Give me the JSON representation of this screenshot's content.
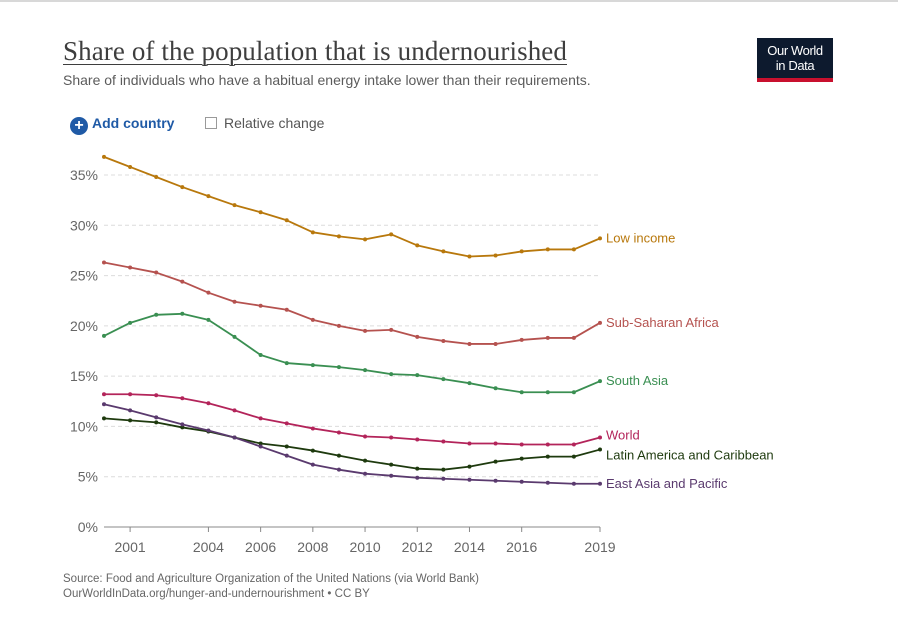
{
  "header": {
    "title": "Share of the population that is undernourished",
    "subtitle": "Share of individuals who have a habitual energy intake lower than their requirements."
  },
  "logo": {
    "line1": "Our World",
    "line2": "in Data"
  },
  "controls": {
    "add_country_label": "Add country",
    "add_country_icon": "plus-circle-icon",
    "relative_change_label": "Relative change",
    "relative_change_checked": false
  },
  "footer": {
    "source": "Source: Food and Agriculture Organization of the United Nations (via World Bank)",
    "url": "OurWorldInData.org/hunger-and-undernourishment • CC BY"
  },
  "colors": {
    "accent": "#1f5aa6",
    "brand_red": "#c8102e",
    "logo_bg": "#0d1a2e"
  },
  "chart_data": {
    "type": "line",
    "title": "Share of the population that is undernourished",
    "xlabel": "",
    "ylabel": "",
    "x": [
      2000,
      2001,
      2002,
      2003,
      2004,
      2005,
      2006,
      2007,
      2008,
      2009,
      2010,
      2011,
      2012,
      2013,
      2014,
      2015,
      2016,
      2017,
      2018,
      2019
    ],
    "xticks": [
      2001,
      2004,
      2006,
      2008,
      2010,
      2012,
      2014,
      2016,
      2019
    ],
    "xlim": [
      2000,
      2019
    ],
    "ylim": [
      0,
      35
    ],
    "yticks": [
      0,
      5,
      10,
      15,
      20,
      25,
      30,
      35
    ],
    "y_format": "%",
    "grid": "horizontal dashed",
    "series": [
      {
        "name": "Low income",
        "color": "#b8780c",
        "values": [
          36.8,
          35.8,
          34.8,
          33.8,
          32.9,
          32.0,
          31.3,
          30.5,
          29.3,
          28.9,
          28.6,
          29.1,
          28.0,
          27.4,
          26.9,
          27.0,
          27.4,
          27.6,
          27.6,
          28.7
        ]
      },
      {
        "name": "Sub-Saharan Africa",
        "color": "#b5524f",
        "values": [
          26.3,
          25.8,
          25.3,
          24.4,
          23.3,
          22.4,
          22.0,
          21.6,
          20.6,
          20.0,
          19.5,
          19.6,
          18.9,
          18.5,
          18.2,
          18.2,
          18.6,
          18.8,
          18.8,
          20.3
        ]
      },
      {
        "name": "South Asia",
        "color": "#3a8f52",
        "values": [
          19.0,
          20.3,
          21.1,
          21.2,
          20.6,
          18.9,
          17.1,
          16.3,
          16.1,
          15.9,
          15.6,
          15.2,
          15.1,
          14.7,
          14.3,
          13.8,
          13.4,
          13.4,
          13.4,
          14.5
        ]
      },
      {
        "name": "World",
        "color": "#b3245a",
        "values": [
          13.2,
          13.2,
          13.1,
          12.8,
          12.3,
          11.6,
          10.8,
          10.3,
          9.8,
          9.4,
          9.0,
          8.9,
          8.7,
          8.5,
          8.3,
          8.3,
          8.2,
          8.2,
          8.2,
          8.9
        ]
      },
      {
        "name": "Latin America and Caribbean",
        "color": "#1e3a0e",
        "values": [
          10.8,
          10.6,
          10.4,
          9.9,
          9.5,
          8.9,
          8.3,
          8.0,
          7.6,
          7.1,
          6.6,
          6.2,
          5.8,
          5.7,
          6.0,
          6.5,
          6.8,
          7.0,
          7.0,
          7.7
        ]
      },
      {
        "name": "East Asia and Pacific",
        "color": "#5a3a6e",
        "values": [
          12.2,
          11.6,
          10.9,
          10.2,
          9.6,
          8.9,
          8.0,
          7.1,
          6.2,
          5.7,
          5.3,
          5.1,
          4.9,
          4.8,
          4.7,
          4.6,
          4.5,
          4.4,
          4.3,
          4.3
        ]
      }
    ]
  }
}
